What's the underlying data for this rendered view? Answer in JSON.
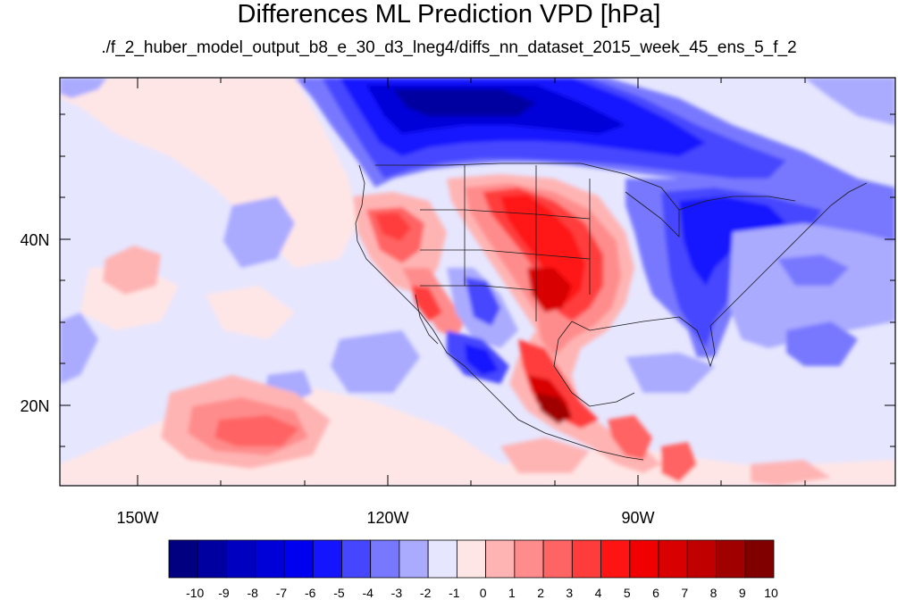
{
  "title": "Differences ML Prediction VPD [hPa]",
  "subtitle": "./f_2_huber_model_output_b8_e_30_d3_lneg4/diffs_nn_dataset_2015_week_45_ens_5_f_2",
  "lat_labels": [
    "40N",
    "20N"
  ],
  "lon_labels": [
    "150W",
    "120W",
    "90W"
  ],
  "colorbar": {
    "labels": [
      "-10",
      "-9",
      "-8",
      "-7",
      "-6",
      "-5",
      "-4",
      "-3",
      "-2",
      "-1",
      "0",
      "1",
      "2",
      "3",
      "4",
      "5",
      "6",
      "7",
      "8",
      "9",
      "10"
    ],
    "colors": [
      "#000080",
      "#0000a0",
      "#0000c0",
      "#0000d8",
      "#0000f0",
      "#1414ff",
      "#4646ff",
      "#7878ff",
      "#aaaaff",
      "#e6e6ff",
      "#ffe6e6",
      "#ffb4b4",
      "#ff8c8c",
      "#ff6464",
      "#ff3c3c",
      "#ff1414",
      "#f00000",
      "#d80000",
      "#c00000",
      "#a00000",
      "#800000"
    ]
  },
  "colors": {
    "ocean_background": "#e6e6ff",
    "coast_line": "#1a1a1a"
  }
}
